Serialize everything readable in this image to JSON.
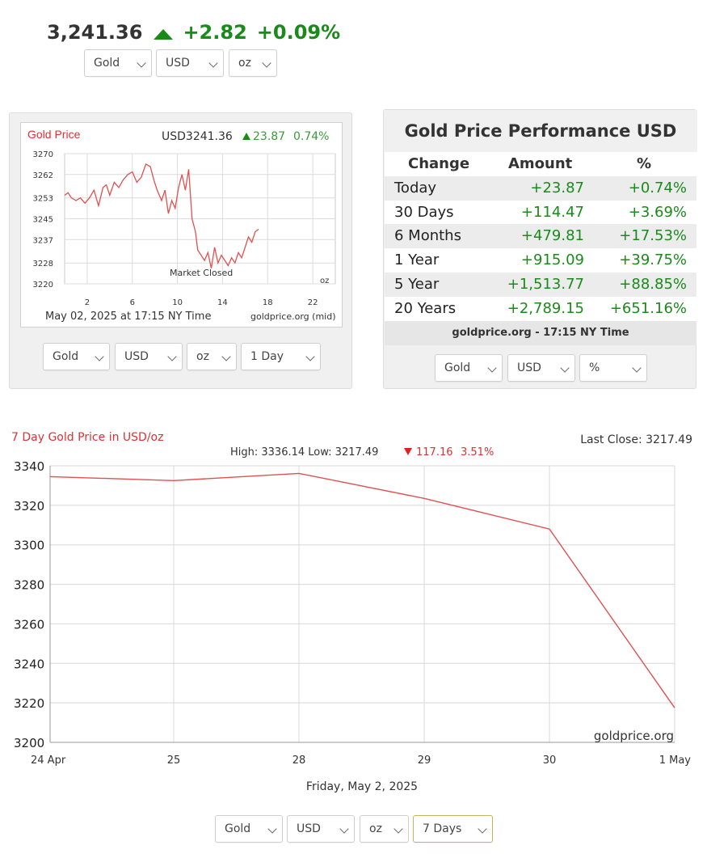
{
  "ticker": {
    "price": "3,241.36",
    "change": "+2.82",
    "change_pct": "+0.09%"
  },
  "top_selects": {
    "metal": "Gold",
    "currency": "USD",
    "unit": "oz"
  },
  "small_chart_selects": {
    "metal": "Gold",
    "currency": "USD",
    "unit": "oz",
    "period": "1 Day"
  },
  "perf_selects": {
    "metal": "Gold",
    "currency": "USD",
    "mode": "%"
  },
  "bottom_selects": {
    "metal": "Gold",
    "currency": "USD",
    "unit": "oz",
    "period": "7 Days"
  },
  "performance": {
    "title": "Gold Price Performance USD",
    "headers": [
      "Change",
      "Amount",
      "%"
    ],
    "rows": [
      {
        "label": "Today",
        "amount": "+23.87",
        "pct": "+0.74%"
      },
      {
        "label": "30 Days",
        "amount": "+114.47",
        "pct": "+3.69%"
      },
      {
        "label": "6 Months",
        "amount": "+479.81",
        "pct": "+17.53%"
      },
      {
        "label": "1 Year",
        "amount": "+915.09",
        "pct": "+39.75%"
      },
      {
        "label": "5 Year",
        "amount": "+1,513.77",
        "pct": "+88.85%"
      },
      {
        "label": "20 Years",
        "amount": "+2,789.15",
        "pct": "+651.16%"
      }
    ],
    "footer": "goldprice.org - 17:15 NY Time"
  },
  "colors": {
    "up": "#1a8a1a",
    "down": "#e02020",
    "line": "#e05050",
    "grid": "#d8d8d8"
  },
  "chart_data": [
    {
      "type": "line",
      "title": "Gold Price",
      "header_value": "USD3241.36",
      "header_change": "23.87",
      "header_pct": "0.74%",
      "annotation": "Market Closed",
      "unit_label": "oz",
      "footer_left": "May 02, 2025 at 17:15 NY Time",
      "footer_right": "goldprice.org (mid)",
      "xlim": [
        0,
        24
      ],
      "ylim": [
        3220,
        3270
      ],
      "xticks": [
        "2",
        "6",
        "10",
        "14",
        "18",
        "22"
      ],
      "xtick_values": [
        2,
        6,
        10,
        14,
        18,
        22
      ],
      "yticks": [
        "3270",
        "3262",
        "3253",
        "3245",
        "3237",
        "3228",
        "3220"
      ],
      "ytick_values": [
        3270,
        3262,
        3253,
        3245,
        3237,
        3228,
        3220
      ],
      "series": [
        {
          "name": "Gold Price",
          "x": [
            0,
            0.3,
            0.6,
            1,
            1.4,
            1.8,
            2.2,
            2.6,
            3,
            3.4,
            3.7,
            4,
            4.4,
            4.8,
            5.2,
            5.6,
            6,
            6.4,
            6.8,
            7.2,
            7.6,
            7.9,
            8.2,
            8.6,
            8.9,
            9.2,
            9.5,
            9.8,
            10.1,
            10.4,
            10.7,
            11,
            11.3,
            11.6,
            11.8,
            12.1,
            12.4,
            12.7,
            13,
            13.3,
            13.6,
            13.9,
            14.2,
            14.5,
            14.8,
            15.1,
            15.4,
            15.7,
            16,
            16.3,
            16.6,
            16.9,
            17.2
          ],
          "y": [
            3254,
            3255,
            3253,
            3252,
            3253,
            3251,
            3253,
            3256,
            3250,
            3257,
            3258,
            3254,
            3259,
            3257,
            3260,
            3262,
            3263,
            3259,
            3261,
            3266,
            3265,
            3260,
            3256,
            3252,
            3256,
            3247,
            3252,
            3249,
            3257,
            3262,
            3256,
            3264,
            3245,
            3240,
            3233,
            3231,
            3229,
            3232,
            3226,
            3234,
            3228,
            3231,
            3229,
            3227,
            3230,
            3228,
            3232,
            3230,
            3234,
            3238,
            3236,
            3240,
            3241
          ]
        }
      ]
    },
    {
      "type": "line",
      "title": "7 Day Gold Price in USD/oz",
      "last_close": "Last Close: 3217.49",
      "high_low": "High: 3336.14 Low: 3217.49",
      "range_change": "117.16",
      "range_pct": "3.51%",
      "watermark": "goldprice.org",
      "xlabel": "Friday, May 2, 2025",
      "categories": [
        "24 Apr",
        "25",
        "28",
        "29",
        "30",
        "1 May"
      ],
      "ylim": [
        3200,
        3340
      ],
      "yticks": [
        "3340",
        "3320",
        "3300",
        "3280",
        "3260",
        "3240",
        "3220",
        "3200"
      ],
      "ytick_values": [
        3340,
        3320,
        3300,
        3280,
        3260,
        3240,
        3220,
        3200
      ],
      "series": [
        {
          "name": "Gold Price",
          "values": [
            3334.5,
            3332.5,
            3336.14,
            3323.5,
            3308,
            3217.49
          ]
        }
      ]
    }
  ]
}
